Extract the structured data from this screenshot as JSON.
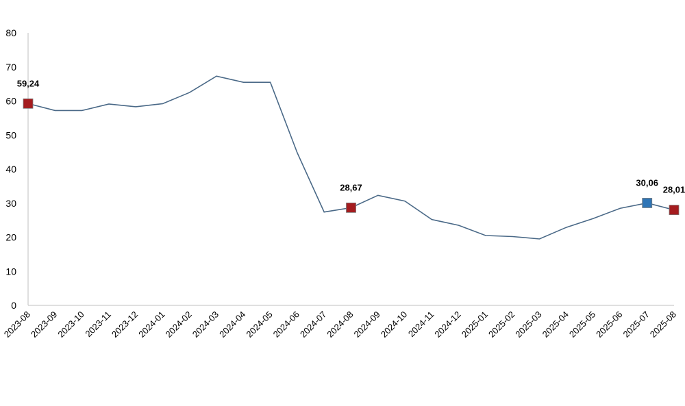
{
  "chart_data": {
    "type": "line",
    "title": "",
    "xlabel": "",
    "ylabel": "",
    "ylim": [
      0,
      80
    ],
    "yticks": [
      "0",
      "10",
      "20",
      "30",
      "40",
      "50",
      "60",
      "70",
      "80"
    ],
    "grid": false,
    "legend": "none",
    "categories": [
      "2023-08",
      "2023-09",
      "2023-10",
      "2023-11",
      "2023-12",
      "2024-01",
      "2024-02",
      "2024-03",
      "2024-04",
      "2024-05",
      "2024-06",
      "2024-07",
      "2024-08",
      "2024-09",
      "2024-10",
      "2024-11",
      "2024-12",
      "2025-01",
      "2025-02",
      "2025-03",
      "2025-04",
      "2025-05",
      "2025-06",
      "2025-07",
      "2025-08"
    ],
    "series": [
      {
        "color": "#4a6987",
        "values": [
          59.24,
          57.2,
          57.2,
          59.1,
          58.3,
          59.2,
          62.5,
          67.3,
          65.5,
          65.5,
          44.8,
          27.4,
          28.67,
          32.3,
          30.6,
          25.2,
          23.5,
          20.5,
          20.2,
          19.5,
          22.9,
          25.5,
          28.5,
          30.06,
          28.01
        ]
      }
    ],
    "markers": [
      {
        "index": 0,
        "color": "#a51c1f",
        "label": "59,24"
      },
      {
        "index": 12,
        "color": "#a51c1f",
        "label": "28,67"
      },
      {
        "index": 23,
        "color": "#2e75b6",
        "label": "30,06"
      },
      {
        "index": 24,
        "color": "#a51c1f",
        "label": "28,01"
      }
    ]
  }
}
